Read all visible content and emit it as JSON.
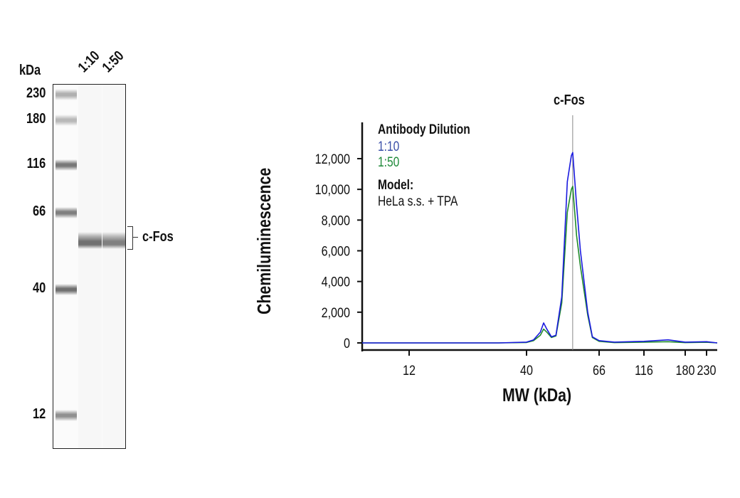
{
  "blot": {
    "unit_label": "kDa",
    "lane_labels": [
      "1:10",
      "1:50"
    ],
    "ladder": [
      {
        "label": "230",
        "mw": 230,
        "intensity": 0.4
      },
      {
        "label": "180",
        "mw": 180,
        "intensity": 0.35
      },
      {
        "label": "116",
        "mw": 116,
        "intensity": 0.75
      },
      {
        "label": "66",
        "mw": 66,
        "intensity": 0.7
      },
      {
        "label": "40",
        "mw": 40,
        "intensity": 0.8
      },
      {
        "label": "12",
        "mw": 12,
        "intensity": 0.6
      }
    ],
    "sample_bands": [
      {
        "lane": "1:10",
        "intensity": 0.8
      },
      {
        "lane": "1:50",
        "intensity": 0.7
      }
    ],
    "target_label": "c-Fos"
  },
  "chart_data": {
    "type": "line",
    "title": "",
    "xlabel": "MW (kDa)",
    "ylabel": "Chemiluminescence",
    "x_scale": "log (calibrated to ladder)",
    "xlim": [
      7.4,
      260
    ],
    "ylim": [
      0,
      14000
    ],
    "x_ticks": [
      12,
      40,
      66,
      116,
      180,
      230
    ],
    "x_tick_labels": [
      "12",
      "40",
      "66",
      "116",
      "180",
      "230"
    ],
    "y_ticks": [
      0,
      2000,
      4000,
      6000,
      8000,
      10000,
      12000
    ],
    "y_tick_labels": [
      "0",
      "2,000",
      "4,000",
      "6,000",
      "8,000",
      "10,000",
      "12,000"
    ],
    "grid": false,
    "marker_line": {
      "x": 55,
      "label": "c-Fos",
      "color": "#888888"
    },
    "legend": {
      "placement": "top-left",
      "title": "Antibody Dilution",
      "model_title": "Model:",
      "model_value": "HeLa s.s. + TPA"
    },
    "series": [
      {
        "name": "1:10",
        "color": "#1a1adf",
        "label_color": "#3a4fa8",
        "x": [
          7.4,
          30,
          40,
          42,
          44,
          45,
          46,
          47.5,
          49,
          51,
          53,
          54.5,
          55,
          56.5,
          58,
          61,
          63,
          66,
          80,
          116,
          150,
          180,
          230,
          260
        ],
        "y": [
          0,
          0,
          50,
          200,
          700,
          1300,
          900,
          400,
          500,
          3000,
          10500,
          12200,
          12400,
          9000,
          6000,
          2000,
          400,
          150,
          50,
          100,
          200,
          50,
          80,
          0
        ]
      },
      {
        "name": "1:50",
        "color": "#1f8a2a",
        "label_color": "#1f8a3a",
        "x": [
          7.4,
          30,
          40,
          42,
          44,
          45,
          46,
          47.5,
          49,
          51,
          53,
          54.5,
          55,
          56.5,
          58,
          61,
          63,
          66,
          80,
          116,
          150,
          180,
          230,
          260
        ],
        "y": [
          0,
          0,
          30,
          150,
          500,
          900,
          700,
          350,
          450,
          2600,
          8500,
          10000,
          10200,
          7000,
          5000,
          1800,
          350,
          100,
          20,
          50,
          80,
          20,
          40,
          0
        ]
      }
    ]
  }
}
